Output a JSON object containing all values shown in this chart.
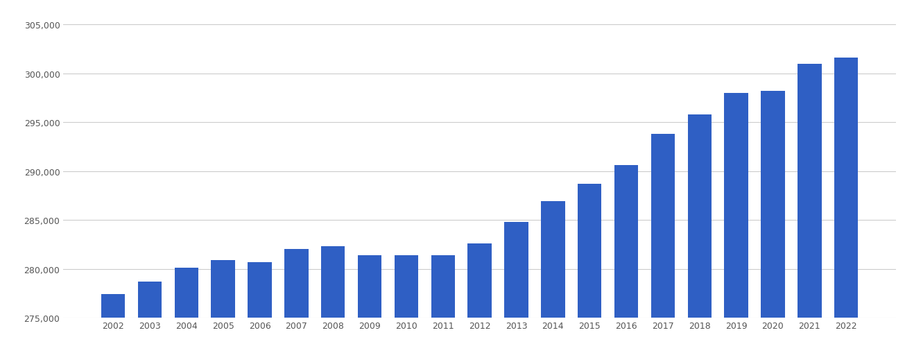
{
  "years": [
    2002,
    2003,
    2004,
    2005,
    2006,
    2007,
    2008,
    2009,
    2010,
    2011,
    2012,
    2013,
    2014,
    2015,
    2016,
    2017,
    2018,
    2019,
    2020,
    2021,
    2022
  ],
  "values": [
    277400,
    278700,
    280100,
    280900,
    280700,
    282000,
    282300,
    281400,
    281400,
    281400,
    282600,
    284800,
    286900,
    288700,
    290600,
    293800,
    295800,
    298000,
    298200,
    301000,
    301600
  ],
  "bar_color": "#2f5fc4",
  "background_color": "#ffffff",
  "grid_color": "#cccccc",
  "tick_color": "#555555",
  "ylim_min": 275000,
  "ylim_max": 306500,
  "yticks": [
    275000,
    280000,
    285000,
    290000,
    295000,
    300000,
    305000
  ],
  "figure_width": 13.05,
  "figure_height": 5.1,
  "dpi": 100
}
